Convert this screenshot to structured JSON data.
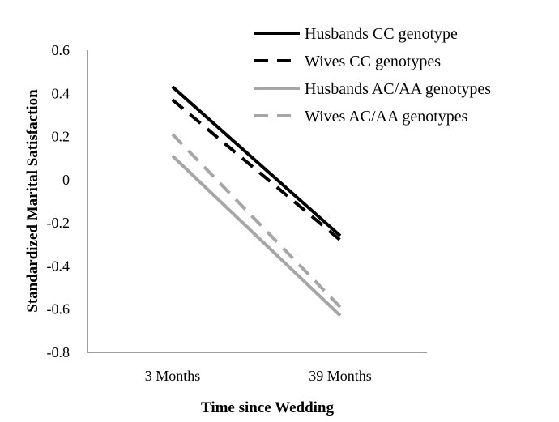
{
  "chart_data": {
    "type": "line",
    "categories": [
      "3 Months",
      "39 Months"
    ],
    "xlabel": "Time since Wedding",
    "ylabel": "Standardized Marital Satisfaction",
    "ylim": [
      -0.8,
      0.6
    ],
    "yticks": [
      "0.6",
      "0.4",
      "0.2",
      "0",
      "-0.2",
      "-0.4",
      "-0.6",
      "-0.8"
    ],
    "grid": false,
    "legend_position": "top-right",
    "series": [
      {
        "name": "Husbands CC genotype",
        "values": [
          0.43,
          -0.26
        ],
        "color": "#000000",
        "dash": "solid"
      },
      {
        "name": "Wives CC genotypes",
        "values": [
          0.37,
          -0.28
        ],
        "color": "#000000",
        "dash": "dashed"
      },
      {
        "name": "Husbands AC/AA genotypes",
        "values": [
          0.11,
          -0.63
        ],
        "color": "#a6a6a6",
        "dash": "solid"
      },
      {
        "name": "Wives AC/AA genotypes",
        "values": [
          0.21,
          -0.59
        ],
        "color": "#a6a6a6",
        "dash": "dashed"
      }
    ]
  }
}
